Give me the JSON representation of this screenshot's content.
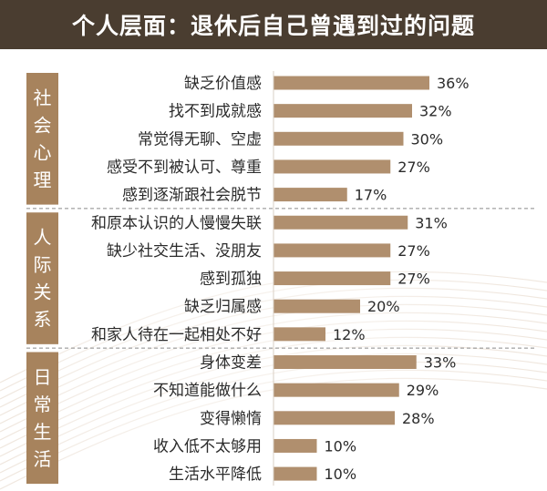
{
  "title": {
    "left": "个人层面：",
    "right": "退休后自己曾遇到过的问题"
  },
  "colors": {
    "header_bg": "#4a3d30",
    "bar": "#b08f6e",
    "group_box": "#a7835d",
    "divider": "#8a8a8a"
  },
  "chart_data": {
    "type": "bar",
    "orientation": "horizontal",
    "unit": "%",
    "xlim": [
      0,
      40
    ],
    "groups": [
      {
        "name": "社会心理",
        "items": [
          {
            "label": "缺乏价值感",
            "value": 36
          },
          {
            "label": "找不到成就感",
            "value": 32
          },
          {
            "label": "常觉得无聊、空虚",
            "value": 30
          },
          {
            "label": "感受不到被认可、尊重",
            "value": 27
          },
          {
            "label": "感到逐渐跟社会脱节",
            "value": 17
          }
        ]
      },
      {
        "name": "人际关系",
        "items": [
          {
            "label": "和原本认识的人慢慢失联",
            "value": 31
          },
          {
            "label": "缺少社交生活、没朋友",
            "value": 27
          },
          {
            "label": "感到孤独",
            "value": 27
          },
          {
            "label": "缺乏归属感",
            "value": 20
          },
          {
            "label": "和家人待在一起相处不好",
            "value": 12
          }
        ]
      },
      {
        "name": "日常生活",
        "items": [
          {
            "label": "身体变差",
            "value": 33
          },
          {
            "label": "不知道能做什么",
            "value": 29
          },
          {
            "label": "变得懒惰",
            "value": 28
          },
          {
            "label": "收入低不太够用",
            "value": 10
          },
          {
            "label": "生活水平降低",
            "value": 10
          }
        ]
      }
    ]
  }
}
